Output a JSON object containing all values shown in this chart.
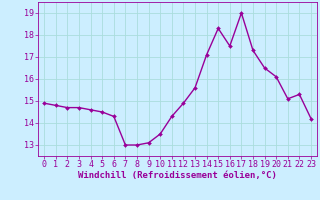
{
  "x": [
    0,
    1,
    2,
    3,
    4,
    5,
    6,
    7,
    8,
    9,
    10,
    11,
    12,
    13,
    14,
    15,
    16,
    17,
    18,
    19,
    20,
    21,
    22,
    23
  ],
  "y": [
    14.9,
    14.8,
    14.7,
    14.7,
    14.6,
    14.5,
    14.3,
    13.0,
    13.0,
    13.1,
    13.5,
    14.3,
    14.9,
    15.6,
    17.1,
    18.3,
    17.5,
    19.0,
    17.3,
    16.5,
    16.1,
    15.1,
    15.3,
    14.2
  ],
  "line_color": "#990099",
  "marker": "D",
  "marker_size": 2.0,
  "line_width": 1.0,
  "background_color": "#cceeff",
  "grid_color": "#aadddd",
  "xlabel": "Windchill (Refroidissement éolien,°C)",
  "xlabel_fontsize": 6.5,
  "tick_fontsize": 6.0,
  "ylim": [
    12.5,
    19.5
  ],
  "yticks": [
    13,
    14,
    15,
    16,
    17,
    18,
    19
  ],
  "xticks": [
    0,
    1,
    2,
    3,
    4,
    5,
    6,
    7,
    8,
    9,
    10,
    11,
    12,
    13,
    14,
    15,
    16,
    17,
    18,
    19,
    20,
    21,
    22,
    23
  ]
}
